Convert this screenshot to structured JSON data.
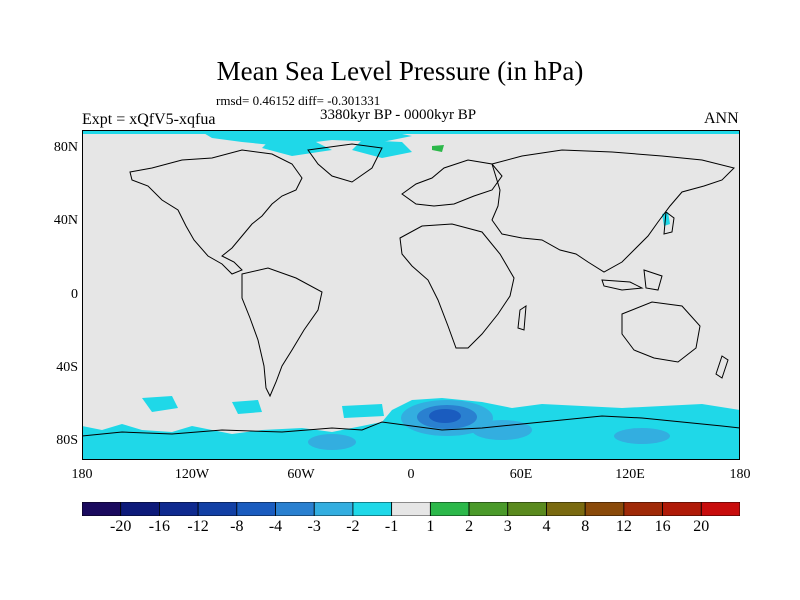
{
  "title": "Mean Sea Level Pressure (in hPa)",
  "stats": "rmsd= 0.46152 diff= -0.301331",
  "period": "3380kyr BP - 0000kyr BP",
  "experiment": "Expt = xQfV5-xqfua",
  "season": "ANN",
  "lat_labels": [
    "80N",
    "40N",
    "0",
    "40S",
    "80S"
  ],
  "lon_labels": [
    "180",
    "120W",
    "60W",
    "0",
    "60E",
    "120E",
    "180"
  ],
  "colorbar": {
    "labels": [
      "-20",
      "-16",
      "-12",
      "-8",
      "-4",
      "-3",
      "-2",
      "-1",
      "1",
      "2",
      "3",
      "4",
      "8",
      "12",
      "16",
      "20"
    ],
    "colors": [
      "#1a0a5e",
      "#0d1a7a",
      "#0f2a8f",
      "#1240a5",
      "#1a5cbf",
      "#2a80d0",
      "#33aee0",
      "#1fd8e8",
      "#e6e6e6",
      "#2cb84a",
      "#4a9a2a",
      "#5a8a1e",
      "#7a6a10",
      "#8a4a0a",
      "#a02a08",
      "#b01a08",
      "#c80c0c"
    ]
  },
  "map": {
    "background_color": "#e6e6e6",
    "anomaly_colors": {
      "neg1": "#1fd8e8",
      "neg2": "#33aee0",
      "neg3": "#2a80d0",
      "neg4": "#1a5cbf",
      "pos1": "#2cb84a"
    }
  }
}
